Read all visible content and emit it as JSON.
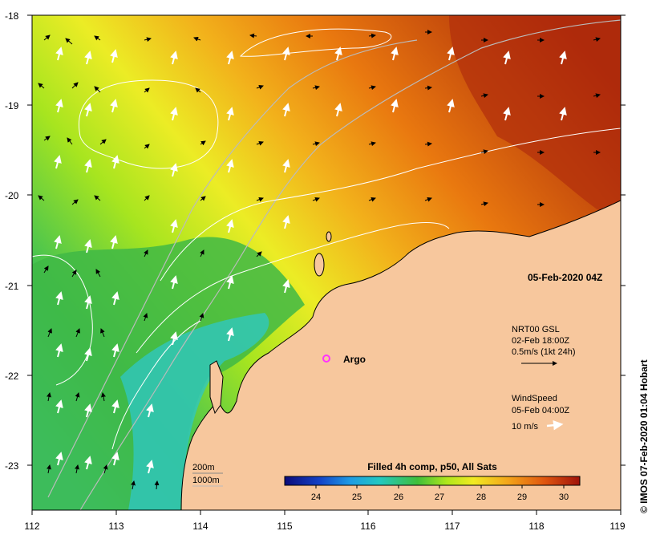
{
  "map": {
    "lat_ticks": [
      "-18",
      "-19",
      "-20",
      "-21",
      "-22",
      "-23"
    ],
    "lon_ticks": [
      "112",
      "113",
      "114",
      "115",
      "116",
      "117",
      "118",
      "119"
    ],
    "timestamp": "05-Feb-2020 04Z",
    "credit": "© IMOS 07-Feb-2020 01:04 Hobart",
    "argo_label": "Argo",
    "argo_color": "#ff33ff",
    "current_legend": {
      "line1": "NRT00 GSL",
      "line2": "02-Feb 18:00Z",
      "line3": "0.5m/s (1kt 24h)"
    },
    "wind_legend": {
      "line1": "WindSpeed",
      "line2": "05-Feb 04:00Z",
      "line3": "10 m/s"
    },
    "depth_legend": {
      "line1": "200m",
      "line2": "1000m"
    },
    "colorbar": {
      "title": "Filled 4h comp, p50, All Sats",
      "ticks": [
        "24",
        "25",
        "26",
        "27",
        "28",
        "29",
        "30"
      ]
    },
    "colors": {
      "land": "#f7c79d",
      "sst_cool": "#33c7c4",
      "sst_green": "#40b53c",
      "sst_yellow": "#ecec25",
      "sst_orange": "#f08a15",
      "sst_red": "#b02c0a"
    }
  }
}
